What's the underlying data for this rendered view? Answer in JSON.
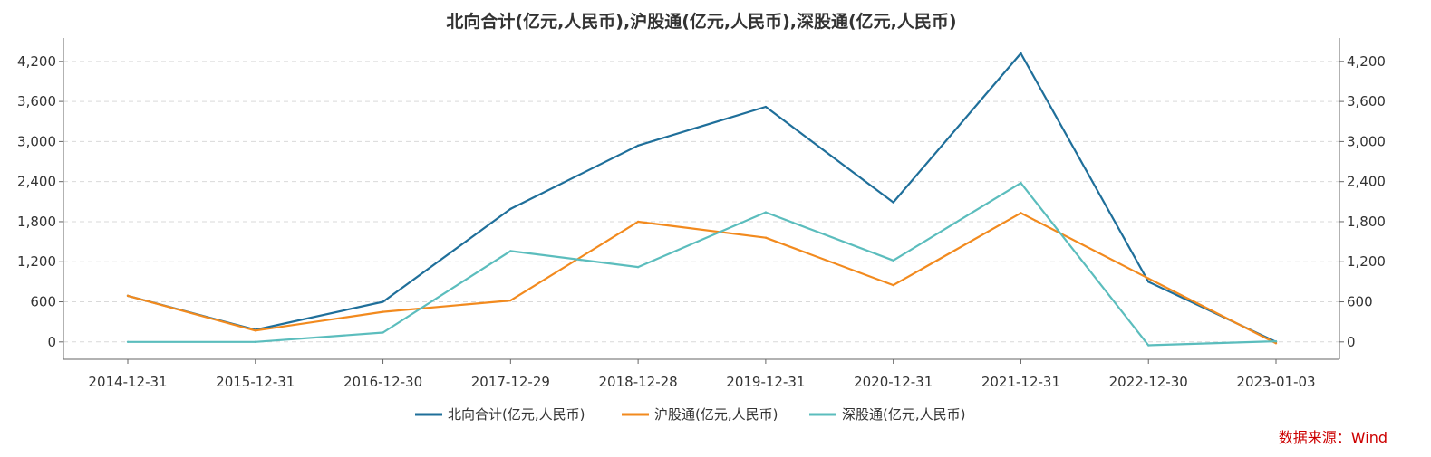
{
  "chart_data": {
    "type": "line",
    "title": "北向合计(亿元,人民币),沪股通(亿元,人民币),深股通(亿元,人民币)",
    "categories": [
      "2014-12-31",
      "2015-12-31",
      "2016-12-30",
      "2017-12-29",
      "2018-12-28",
      "2019-12-31",
      "2020-12-31",
      "2021-12-31",
      "2022-12-30",
      "2023-01-03"
    ],
    "series": [
      {
        "name": "北向合计(亿元,人民币)",
        "color": "#1f6f9a",
        "values": [
          690,
          180,
          600,
          1990,
          2940,
          3520,
          2090,
          4320,
          900,
          0
        ]
      },
      {
        "name": "沪股通(亿元,人民币)",
        "color": "#f28a1e",
        "values": [
          690,
          170,
          450,
          620,
          1800,
          1560,
          850,
          1930,
          950,
          -20
        ]
      },
      {
        "name": "深股通(亿元,人民币)",
        "color": "#5bbdbd",
        "values": [
          0,
          0,
          140,
          1360,
          1120,
          1940,
          1220,
          2380,
          -50,
          10
        ]
      }
    ],
    "ylim": [
      -260,
      4550
    ],
    "yticks": [
      0,
      600,
      1200,
      1800,
      2400,
      3000,
      3600,
      4200
    ],
    "ytick_labels": [
      "0",
      "600",
      "1,200",
      "1,800",
      "2,400",
      "3,000",
      "3,600",
      "4,200"
    ],
    "grid": true,
    "legend": "bottom",
    "source": "数据来源：Wind"
  }
}
